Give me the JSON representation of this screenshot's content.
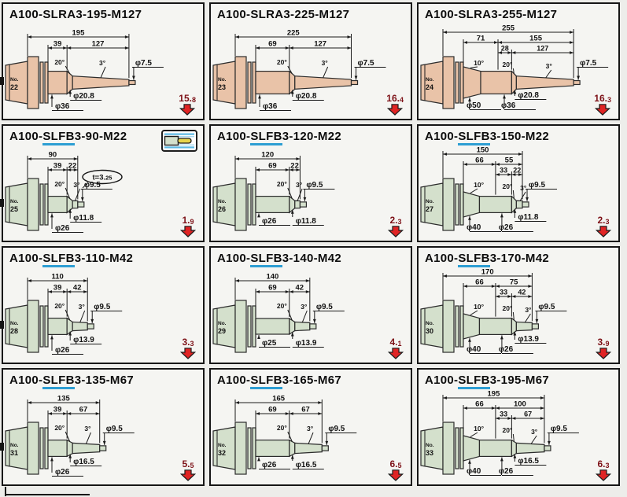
{
  "page": {
    "background": "#ededea",
    "cell_background": "#f5f5f2",
    "line_color": "#1a1a1a",
    "link_underline_color": "#2d9ed3",
    "weight_text_color": "#7d1117",
    "arrow_color": "#e02424",
    "tan_body_color": "#e9c3a8",
    "green_body_color": "#d4e0cc"
  },
  "cells": [
    {
      "title_prefix": "A100-",
      "title_link": "",
      "title_rest": "SLRA3-195-M127",
      "no_label": "No.",
      "no_value": "22",
      "weight_main": "15.",
      "weight_sub": "8",
      "variant": "a2",
      "stagger": true,
      "body_color": "#e9c3a8",
      "dims": {
        "total": "195",
        "seg1": "39",
        "seg2": "127",
        "sub1": "",
        "sub2": "",
        "angle_10": "",
        "angle_20": "20°",
        "angle_3": "3°",
        "dia_tip": "φ7.5",
        "dia_neck": "φ20.8",
        "dia_base": "φ36",
        "dia_big": ""
      },
      "badge_main": "",
      "badge_sub": "",
      "has_icon": false
    },
    {
      "title_prefix": "A100-",
      "title_link": "",
      "title_rest": "SLRA3-225-M127",
      "no_label": "No.",
      "no_value": "23",
      "weight_main": "16.",
      "weight_sub": "4",
      "variant": "a2",
      "stagger": true,
      "body_color": "#e9c3a8",
      "dims": {
        "total": "225",
        "seg1": "69",
        "seg2": "127",
        "sub1": "",
        "sub2": "",
        "angle_10": "",
        "angle_20": "20°",
        "angle_3": "3°",
        "dia_tip": "φ7.5",
        "dia_neck": "φ20.8",
        "dia_base": "φ36",
        "dia_big": ""
      },
      "badge_main": "",
      "badge_sub": "",
      "has_icon": false
    },
    {
      "title_prefix": "A100-",
      "title_link": "",
      "title_rest": "SLRA3-255-M127",
      "no_label": "No.",
      "no_value": "24",
      "weight_main": "16.",
      "weight_sub": "3",
      "variant": "a3",
      "stagger": true,
      "body_color": "#e9c3a8",
      "dims": {
        "total": "255",
        "seg1": "71",
        "seg2": "155",
        "sub1": "28",
        "sub2": "127",
        "angle_10": "10°",
        "angle_20": "20°",
        "angle_3": "3°",
        "dia_tip": "φ7.5",
        "dia_neck": "φ20.8",
        "dia_base": "φ36",
        "dia_big": "φ50"
      },
      "badge_main": "",
      "badge_sub": "",
      "has_icon": false
    },
    {
      "title_prefix": "A100-",
      "title_link": "SLFB",
      "title_rest": "3-90-M22",
      "no_label": "No.",
      "no_value": "25",
      "weight_main": "1.",
      "weight_sub": "9",
      "variant": "b2",
      "stagger": true,
      "body_color": "#d4e0cc",
      "dims": {
        "total": "90",
        "seg1": "39",
        "seg2": "22",
        "sub1": "",
        "sub2": "",
        "angle_10": "",
        "angle_20": "20°",
        "angle_3": "3°",
        "dia_tip": "φ9.5",
        "dia_neck": "φ11.8",
        "dia_base": "φ26",
        "dia_big": ""
      },
      "badge_main": "t=3.",
      "badge_sub": "25",
      "has_icon": true
    },
    {
      "title_prefix": "A100-",
      "title_link": "SLFB",
      "title_rest": "3-120-M22",
      "no_label": "No.",
      "no_value": "26",
      "weight_main": "2.",
      "weight_sub": "3",
      "variant": "b2",
      "stagger": false,
      "body_color": "#d4e0cc",
      "dims": {
        "total": "120",
        "seg1": "69",
        "seg2": "22",
        "sub1": "",
        "sub2": "",
        "angle_10": "",
        "angle_20": "20°",
        "angle_3": "3°",
        "dia_tip": "φ9.5",
        "dia_neck": "φ11.8",
        "dia_base": "φ26",
        "dia_big": ""
      },
      "badge_main": "",
      "badge_sub": "",
      "has_icon": false
    },
    {
      "title_prefix": "A100-",
      "title_link": "SLFB",
      "title_rest": "3-150-M22",
      "no_label": "No.",
      "no_value": "27",
      "weight_main": "2.",
      "weight_sub": "3",
      "variant": "b3",
      "stagger": true,
      "body_color": "#d4e0cc",
      "dims": {
        "total": "150",
        "seg1": "66",
        "seg2": "55",
        "sub1": "33",
        "sub2": "22",
        "angle_10": "10°",
        "angle_20": "20°",
        "angle_3": "3°",
        "dia_tip": "φ9.5",
        "dia_neck": "φ11.8",
        "dia_base": "φ26",
        "dia_big": "φ40"
      },
      "badge_main": "",
      "badge_sub": "",
      "has_icon": false
    },
    {
      "title_prefix": "A100-",
      "title_link": "SLFB",
      "title_rest": "3-110-M42",
      "no_label": "No.",
      "no_value": "28",
      "weight_main": "3.",
      "weight_sub": "3",
      "variant": "b2",
      "stagger": true,
      "body_color": "#d4e0cc",
      "dims": {
        "total": "110",
        "seg1": "39",
        "seg2": "42",
        "sub1": "",
        "sub2": "",
        "angle_10": "",
        "angle_20": "20°",
        "angle_3": "3°",
        "dia_tip": "φ9.5",
        "dia_neck": "φ13.9",
        "dia_base": "φ26",
        "dia_big": ""
      },
      "badge_main": "",
      "badge_sub": "",
      "has_icon": false
    },
    {
      "title_prefix": "A100-",
      "title_link": "SLFB",
      "title_rest": "3-140-M42",
      "no_label": "No.",
      "no_value": "29",
      "weight_main": "4.",
      "weight_sub": "1",
      "variant": "b2",
      "stagger": false,
      "body_color": "#d4e0cc",
      "dims": {
        "total": "140",
        "seg1": "69",
        "seg2": "42",
        "sub1": "",
        "sub2": "",
        "angle_10": "",
        "angle_20": "20°",
        "angle_3": "3°",
        "dia_tip": "φ9.5",
        "dia_neck": "φ13.9",
        "dia_base": "φ25",
        "dia_big": ""
      },
      "badge_main": "",
      "badge_sub": "",
      "has_icon": false
    },
    {
      "title_prefix": "A100-",
      "title_link": "SLFB",
      "title_rest": "3-170-M42",
      "no_label": "No.",
      "no_value": "30",
      "weight_main": "3.",
      "weight_sub": "9",
      "variant": "b3",
      "stagger": true,
      "body_color": "#d4e0cc",
      "dims": {
        "total": "170",
        "seg1": "66",
        "seg2": "75",
        "sub1": "33",
        "sub2": "42",
        "angle_10": "10°",
        "angle_20": "20°",
        "angle_3": "3°",
        "dia_tip": "φ9.5",
        "dia_neck": "φ13.9",
        "dia_base": "φ26",
        "dia_big": "φ40"
      },
      "badge_main": "",
      "badge_sub": "",
      "has_icon": false
    },
    {
      "title_prefix": "A100-",
      "title_link": "SLFB",
      "title_rest": "3-135-M67",
      "no_label": "No.",
      "no_value": "31",
      "weight_main": "5.",
      "weight_sub": "5",
      "variant": "b2",
      "stagger": true,
      "body_color": "#d4e0cc",
      "dims": {
        "total": "135",
        "seg1": "39",
        "seg2": "67",
        "sub1": "",
        "sub2": "",
        "angle_10": "",
        "angle_20": "20°",
        "angle_3": "3°",
        "dia_tip": "φ9.5",
        "dia_neck": "φ16.5",
        "dia_base": "φ26",
        "dia_big": ""
      },
      "badge_main": "",
      "badge_sub": "",
      "has_icon": false
    },
    {
      "title_prefix": "A100-",
      "title_link": "SLFB",
      "title_rest": "3-165-M67",
      "no_label": "No.",
      "no_value": "32",
      "weight_main": "6.",
      "weight_sub": "5",
      "variant": "b2",
      "stagger": false,
      "body_color": "#d4e0cc",
      "dims": {
        "total": "165",
        "seg1": "69",
        "seg2": "67",
        "sub1": "",
        "sub2": "",
        "angle_10": "",
        "angle_20": "20°",
        "angle_3": "3°",
        "dia_tip": "φ9.5",
        "dia_neck": "φ16.5",
        "dia_base": "φ26",
        "dia_big": ""
      },
      "badge_main": "",
      "badge_sub": "",
      "has_icon": false
    },
    {
      "title_prefix": "A100-",
      "title_link": "SLFB",
      "title_rest": "3-195-M67",
      "no_label": "No.",
      "no_value": "33",
      "weight_main": "6.",
      "weight_sub": "3",
      "variant": "b3",
      "stagger": true,
      "body_color": "#d4e0cc",
      "dims": {
        "total": "195",
        "seg1": "66",
        "seg2": "100",
        "sub1": "33",
        "sub2": "67",
        "angle_10": "10°",
        "angle_20": "20°",
        "angle_3": "3°",
        "dia_tip": "φ9.5",
        "dia_neck": "φ16.5",
        "dia_base": "φ26",
        "dia_big": "φ40"
      },
      "badge_main": "",
      "badge_sub": "",
      "has_icon": false
    }
  ]
}
